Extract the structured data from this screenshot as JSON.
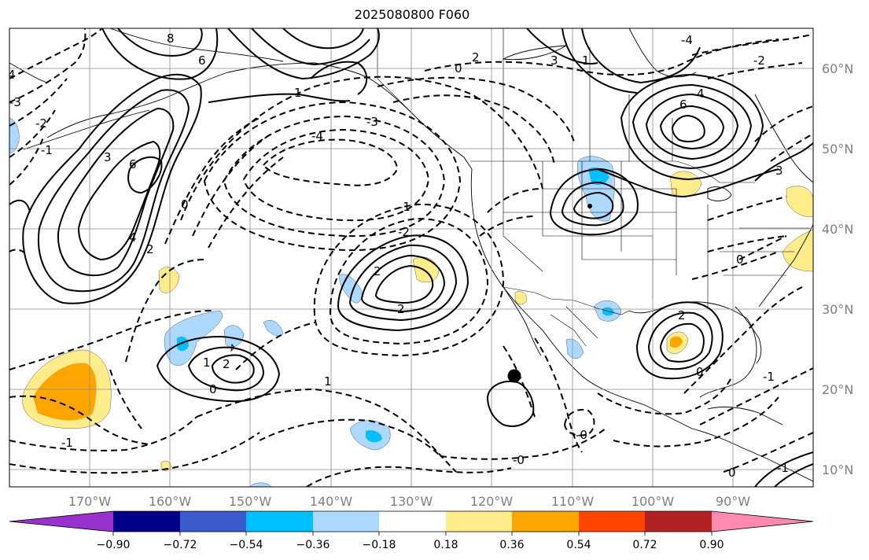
{
  "title": "2025080800 F060",
  "map": {
    "lon_labels": [
      "170°W",
      "160°W",
      "150°W",
      "140°W",
      "130°W",
      "120°W",
      "110°W",
      "100°W",
      "90°W"
    ],
    "lat_labels": [
      "60°N",
      "50°N",
      "40°N",
      "30°N",
      "20°N",
      "10°N"
    ],
    "contour_labels": [
      {
        "text": "8"
      },
      {
        "text": "6"
      },
      {
        "text": "4"
      },
      {
        "text": "3"
      },
      {
        "text": "2"
      },
      {
        "text": "1"
      },
      {
        "text": "0"
      },
      {
        "text": "-1"
      },
      {
        "text": "-2"
      },
      {
        "text": "-3"
      },
      {
        "text": "-4"
      },
      {
        "text": "6"
      },
      {
        "text": "4"
      },
      {
        "text": "2"
      },
      {
        "text": "2"
      },
      {
        "text": "2"
      },
      {
        "text": "1"
      },
      {
        "text": "0"
      },
      {
        "text": "-0"
      },
      {
        "text": "-0"
      },
      {
        "text": "-1"
      },
      {
        "text": "-4"
      },
      {
        "text": "-2"
      },
      {
        "text": "6"
      },
      {
        "text": "4"
      },
      {
        "text": "3"
      },
      {
        "text": "2"
      },
      {
        "text": "1"
      },
      {
        "text": "0"
      },
      {
        "text": "-1"
      },
      {
        "text": "2"
      },
      {
        "text": "1"
      },
      {
        "text": "0"
      },
      {
        "text": "0"
      },
      {
        "text": "-1"
      },
      {
        "text": "3"
      },
      {
        "text": "-3"
      },
      {
        "text": "-2"
      },
      {
        "text": "-1"
      },
      {
        "text": "0"
      }
    ],
    "marker": "storm-center-dot"
  },
  "colorbar": {
    "colors": [
      "#9932cc",
      "#00008b",
      "#3a5bcb",
      "#00bfff",
      "#add8ff",
      "#ffffff",
      "#ffec8b",
      "#ffa500",
      "#ff4500",
      "#b22222",
      "#ff8ab0"
    ],
    "ticks": [
      "−0.90",
      "−0.72",
      "−0.54",
      "−0.36",
      "−0.18",
      "0.18",
      "0.36",
      "0.54",
      "0.72",
      "0.90"
    ]
  }
}
